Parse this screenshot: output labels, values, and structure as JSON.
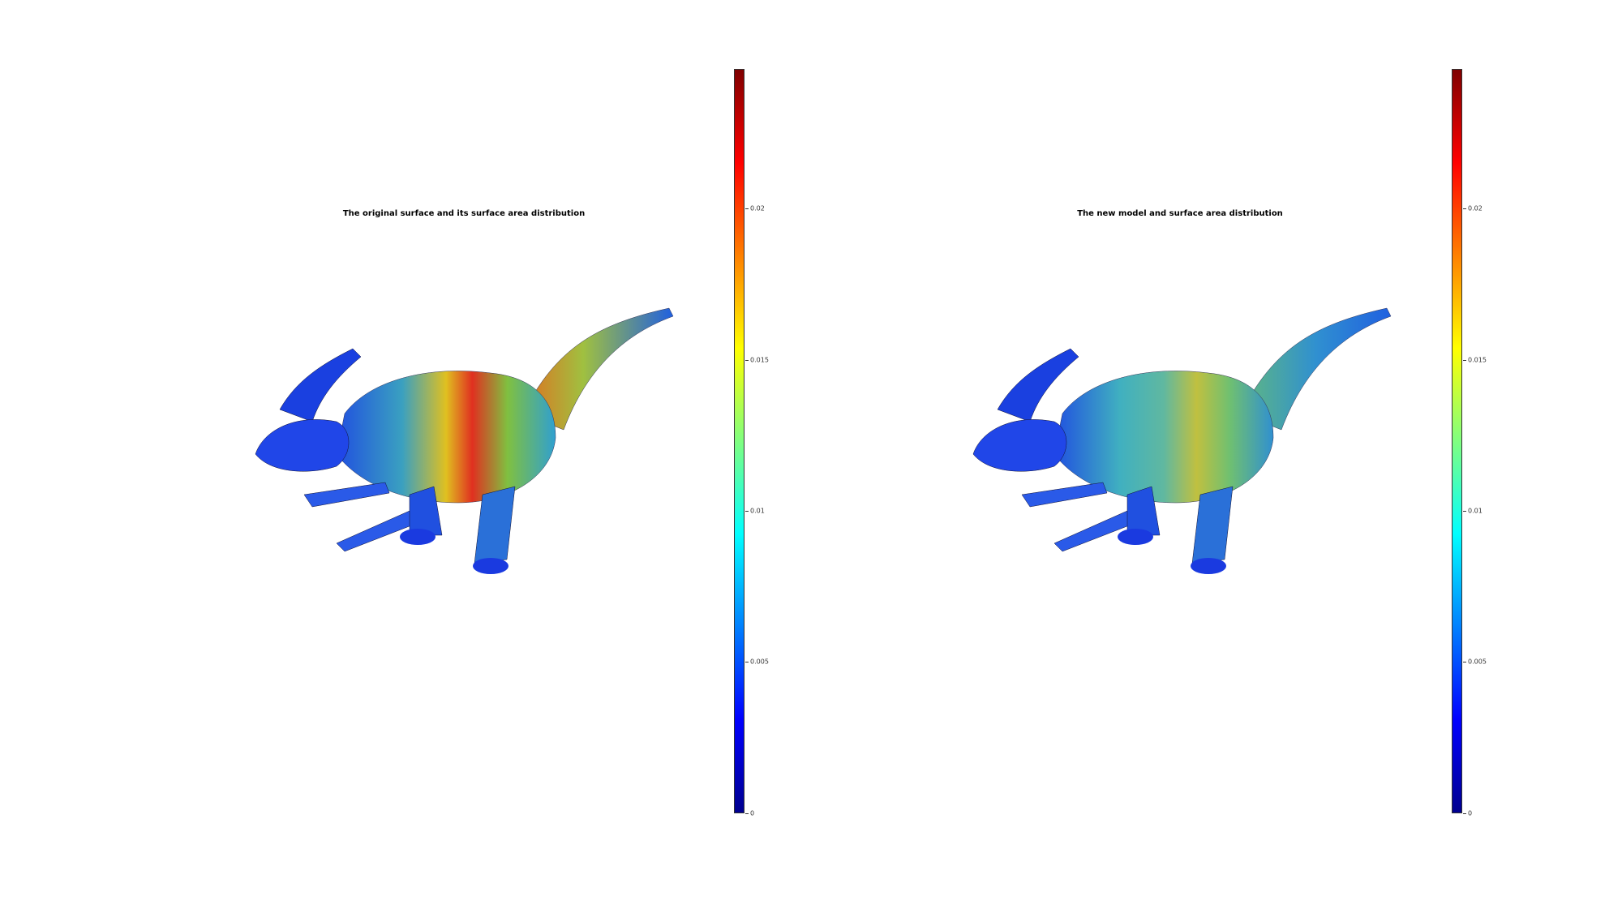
{
  "panels": [
    {
      "title": "The original surface and its surface area distribution",
      "colorbar_ticks": [
        "0",
        "0.005",
        "0.01",
        "0.015",
        "0.02"
      ],
      "colorbar_tick_values": [
        0,
        0.005,
        0.01,
        0.015,
        0.02
      ],
      "colorbar_max": 0.0246
    },
    {
      "title": "The new model and surface area distribution",
      "colorbar_ticks": [
        "0",
        "0.005",
        "0.01",
        "0.015",
        "0.02"
      ],
      "colorbar_tick_values": [
        0,
        0.005,
        0.01,
        0.015,
        0.02
      ],
      "colorbar_max": 0.0246
    }
  ],
  "colors": {
    "low": "#00008f",
    "mid": "#00ffff",
    "high": "#800000"
  }
}
